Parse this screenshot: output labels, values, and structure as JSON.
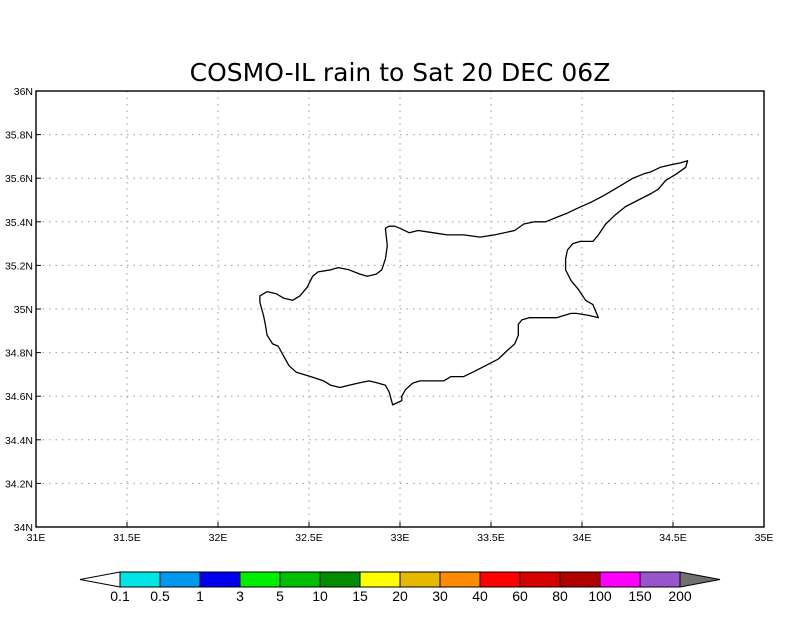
{
  "title": "COSMO-IL rain to Sat 20 DEC 06Z",
  "map": {
    "lon_range": [
      31,
      35
    ],
    "lat_range": [
      34,
      36
    ],
    "lon_ticks": [
      {
        "value": 31.0,
        "label": "31E"
      },
      {
        "value": 31.5,
        "label": "31.5E"
      },
      {
        "value": 32.0,
        "label": "32E"
      },
      {
        "value": 32.5,
        "label": "32.5E"
      },
      {
        "value": 33.0,
        "label": "33E"
      },
      {
        "value": 33.5,
        "label": "33.5E"
      },
      {
        "value": 34.0,
        "label": "34E"
      },
      {
        "value": 34.5,
        "label": "34.5E"
      },
      {
        "value": 35.0,
        "label": "35E"
      }
    ],
    "lat_ticks": [
      {
        "value": 34.0,
        "label": "34N"
      },
      {
        "value": 34.2,
        "label": "34.2N"
      },
      {
        "value": 34.4,
        "label": "34.4N"
      },
      {
        "value": 34.6,
        "label": "34.6N"
      },
      {
        "value": 34.8,
        "label": "34.8N"
      },
      {
        "value": 35.0,
        "label": "35N"
      },
      {
        "value": 35.2,
        "label": "35.2N"
      },
      {
        "value": 35.4,
        "label": "35.4N"
      },
      {
        "value": 35.6,
        "label": "35.6N"
      },
      {
        "value": 35.8,
        "label": "35.8N"
      },
      {
        "value": 36.0,
        "label": "36N"
      }
    ],
    "grid": true,
    "coastline": [
      [
        32.27,
        35.08
      ],
      [
        32.32,
        35.07
      ],
      [
        32.36,
        35.05
      ],
      [
        32.41,
        35.04
      ],
      [
        32.45,
        35.06
      ],
      [
        32.49,
        35.1
      ],
      [
        32.52,
        35.15
      ],
      [
        32.55,
        35.17
      ],
      [
        32.62,
        35.18
      ],
      [
        32.66,
        35.19
      ],
      [
        32.72,
        35.18
      ],
      [
        32.78,
        35.16
      ],
      [
        32.82,
        35.15
      ],
      [
        32.87,
        35.16
      ],
      [
        32.9,
        35.18
      ],
      [
        32.92,
        35.23
      ],
      [
        32.93,
        35.29
      ],
      [
        32.92,
        35.37
      ],
      [
        32.94,
        35.38
      ],
      [
        32.97,
        35.38
      ],
      [
        33.0,
        35.37
      ],
      [
        33.05,
        35.35
      ],
      [
        33.1,
        35.36
      ],
      [
        33.18,
        35.35
      ],
      [
        33.26,
        35.34
      ],
      [
        33.35,
        35.34
      ],
      [
        33.44,
        35.33
      ],
      [
        33.52,
        35.34
      ],
      [
        33.63,
        35.36
      ],
      [
        33.68,
        35.39
      ],
      [
        33.74,
        35.4
      ],
      [
        33.8,
        35.4
      ],
      [
        33.86,
        35.42
      ],
      [
        33.92,
        35.44
      ],
      [
        33.97,
        35.46
      ],
      [
        34.05,
        35.49
      ],
      [
        34.12,
        35.52
      ],
      [
        34.2,
        35.56
      ],
      [
        34.28,
        35.6
      ],
      [
        34.34,
        35.62
      ],
      [
        34.38,
        35.63
      ],
      [
        34.43,
        35.65
      ],
      [
        34.48,
        35.66
      ],
      [
        34.54,
        35.67
      ],
      [
        34.58,
        35.68
      ],
      [
        34.57,
        35.65
      ],
      [
        34.52,
        35.62
      ],
      [
        34.46,
        35.59
      ],
      [
        34.42,
        35.55
      ],
      [
        34.38,
        35.53
      ],
      [
        34.31,
        35.5
      ],
      [
        34.24,
        35.47
      ],
      [
        34.18,
        35.43
      ],
      [
        34.13,
        35.39
      ],
      [
        34.09,
        35.34
      ],
      [
        34.06,
        35.31
      ],
      [
        34.03,
        35.31
      ],
      [
        33.99,
        35.31
      ],
      [
        33.95,
        35.3
      ],
      [
        33.92,
        35.27
      ],
      [
        33.91,
        35.23
      ],
      [
        33.91,
        35.18
      ],
      [
        33.94,
        35.13
      ],
      [
        33.98,
        35.09
      ],
      [
        34.02,
        35.04
      ],
      [
        34.06,
        35.02
      ],
      [
        34.09,
        34.96
      ],
      [
        34.04,
        34.97
      ],
      [
        33.97,
        34.98
      ],
      [
        33.94,
        34.98
      ],
      [
        33.9,
        34.97
      ],
      [
        33.86,
        34.96
      ],
      [
        33.83,
        34.96
      ],
      [
        33.76,
        34.96
      ],
      [
        33.71,
        34.96
      ],
      [
        33.67,
        34.95
      ],
      [
        33.65,
        34.93
      ],
      [
        33.65,
        34.88
      ],
      [
        33.63,
        34.84
      ],
      [
        33.59,
        34.81
      ],
      [
        33.54,
        34.77
      ],
      [
        33.47,
        34.74
      ],
      [
        33.4,
        34.71
      ],
      [
        33.35,
        34.69
      ],
      [
        33.28,
        34.69
      ],
      [
        33.24,
        34.67
      ],
      [
        33.18,
        34.67
      ],
      [
        33.11,
        34.67
      ],
      [
        33.07,
        34.66
      ],
      [
        33.03,
        34.63
      ],
      [
        33.01,
        34.6
      ],
      [
        33.01,
        34.58
      ],
      [
        32.96,
        34.56
      ],
      [
        32.95,
        34.59
      ],
      [
        32.94,
        34.62
      ],
      [
        32.92,
        34.65
      ],
      [
        32.88,
        34.66
      ],
      [
        32.83,
        34.67
      ],
      [
        32.77,
        34.66
      ],
      [
        32.72,
        34.65
      ],
      [
        32.67,
        34.64
      ],
      [
        32.62,
        34.65
      ],
      [
        32.58,
        34.67
      ],
      [
        32.51,
        34.69
      ],
      [
        32.43,
        34.71
      ],
      [
        32.39,
        34.74
      ],
      [
        32.35,
        34.8
      ],
      [
        32.33,
        34.83
      ],
      [
        32.3,
        34.84
      ],
      [
        32.27,
        34.88
      ],
      [
        32.26,
        34.93
      ],
      [
        32.25,
        34.97
      ],
      [
        32.24,
        35.0
      ],
      [
        32.23,
        35.03
      ],
      [
        32.23,
        35.06
      ],
      [
        32.27,
        35.08
      ]
    ]
  },
  "colorbar": {
    "labels": [
      "0.1",
      "0.5",
      "1",
      "3",
      "5",
      "10",
      "15",
      "20",
      "30",
      "40",
      "60",
      "80",
      "100",
      "150",
      "200"
    ],
    "colors": [
      "#00e5e5",
      "#0099ee",
      "#0000ee",
      "#00ee00",
      "#00bf00",
      "#008b00",
      "#ffff00",
      "#e6b800",
      "#ff8c00",
      "#ff0000",
      "#d60000",
      "#b00000",
      "#ff00ff",
      "#9955cc"
    ],
    "under_color": "#ffffff",
    "over_color": "#707070"
  }
}
